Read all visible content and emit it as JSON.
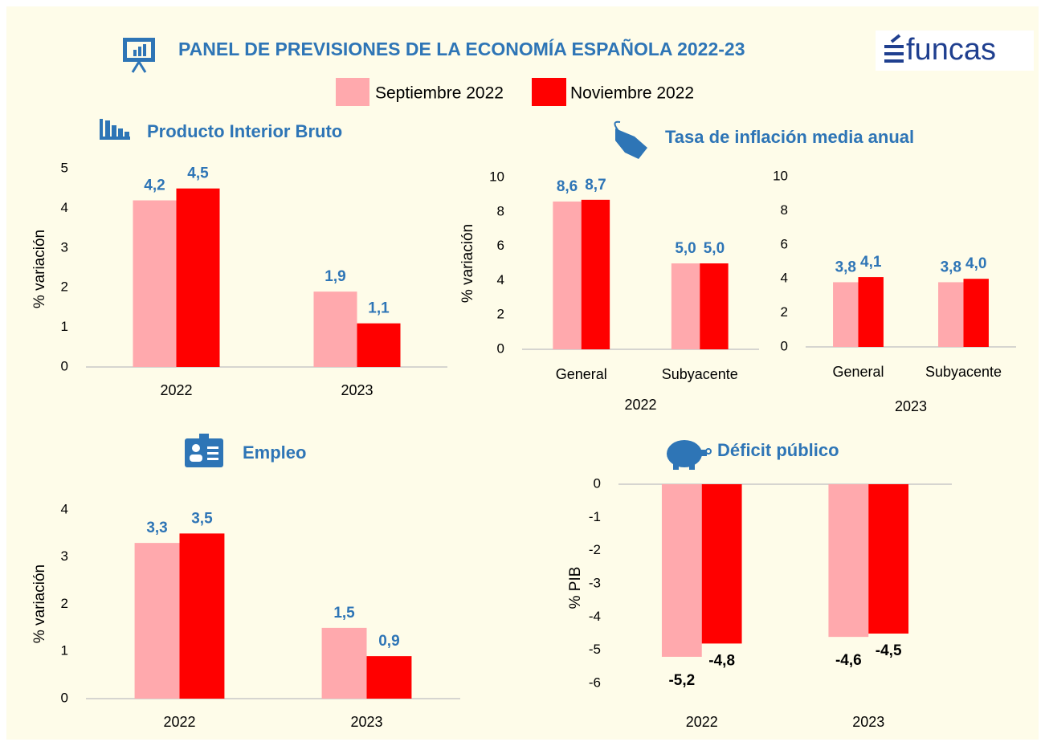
{
  "header": {
    "title": "PANEL DE PREVISIONES DE LA ECONOMÍA ESPAÑOLA 2022-23",
    "logo": "funcas"
  },
  "chart_data": [
    {
      "type": "bar",
      "title": "Producto Interior Bruto",
      "ylabel": "% variación",
      "categories": [
        "2022",
        "2023"
      ],
      "series": [
        {
          "name": "Septiembre 2022",
          "color": "#ffa9ad",
          "values": [
            4.2,
            1.9
          ],
          "value_labels": [
            "4,2",
            "1,9"
          ]
        },
        {
          "name": "Noviembre 2022",
          "color": "#ff0000",
          "values": [
            4.5,
            1.1
          ],
          "value_labels": [
            "4,5",
            "1,1"
          ]
        }
      ],
      "ylim": [
        0,
        5
      ],
      "yticks": [
        0,
        1,
        2,
        3,
        4,
        5
      ],
      "grid": false
    },
    {
      "type": "bar",
      "title": "Tasa de inflación media anual",
      "ylabel": "% variación",
      "xlabel": "2022",
      "categories": [
        "General",
        "Subyacente"
      ],
      "series": [
        {
          "name": "Septiembre 2022",
          "color": "#ffa9ad",
          "values": [
            8.6,
            5.0
          ],
          "value_labels": [
            "8,6",
            "5,0"
          ]
        },
        {
          "name": "Noviembre 2022",
          "color": "#ff0000",
          "values": [
            8.7,
            5.0
          ],
          "value_labels": [
            "8,7",
            "5,0"
          ]
        }
      ],
      "ylim": [
        0,
        10
      ],
      "yticks": [
        0,
        2,
        4,
        6,
        8,
        10
      ],
      "grid": false
    },
    {
      "type": "bar",
      "xlabel": "2023",
      "categories": [
        "General",
        "Subyacente"
      ],
      "series": [
        {
          "name": "Septiembre 2022",
          "color": "#ffa9ad",
          "values": [
            3.8,
            3.8
          ],
          "value_labels": [
            "3,8",
            "3,8"
          ]
        },
        {
          "name": "Noviembre 2022",
          "color": "#ff0000",
          "values": [
            4.1,
            4.0
          ],
          "value_labels": [
            "4,1",
            "4,0"
          ]
        }
      ],
      "ylim": [
        0,
        10
      ],
      "yticks": [
        0,
        2,
        4,
        6,
        8,
        10
      ],
      "grid": false
    },
    {
      "type": "bar",
      "title": "Empleo",
      "ylabel": "% variación",
      "categories": [
        "2022",
        "2023"
      ],
      "series": [
        {
          "name": "Septiembre 2022",
          "color": "#ffa9ad",
          "values": [
            3.3,
            1.5
          ],
          "value_labels": [
            "3,3",
            "1,5"
          ]
        },
        {
          "name": "Noviembre 2022",
          "color": "#ff0000",
          "values": [
            3.5,
            0.9
          ],
          "value_labels": [
            "3,5",
            "0,9"
          ]
        }
      ],
      "ylim": [
        0,
        4
      ],
      "yticks": [
        0,
        1,
        2,
        3,
        4
      ],
      "grid": false
    },
    {
      "type": "bar",
      "title": "Déficit público",
      "ylabel": "% PIB",
      "categories": [
        "2022",
        "2023"
      ],
      "series": [
        {
          "name": "Septiembre 2022",
          "color": "#ffa9ad",
          "values": [
            -5.2,
            -4.6
          ],
          "value_labels": [
            "-5,2",
            "-4,6"
          ]
        },
        {
          "name": "Noviembre 2022",
          "color": "#ff0000",
          "values": [
            -4.8,
            -4.5
          ],
          "value_labels": [
            "-4,8",
            "-4,5"
          ]
        }
      ],
      "ylim": [
        -6,
        0
      ],
      "yticks": [
        0,
        -1,
        -2,
        -3,
        -4,
        -5,
        -6
      ],
      "grid": false
    }
  ]
}
